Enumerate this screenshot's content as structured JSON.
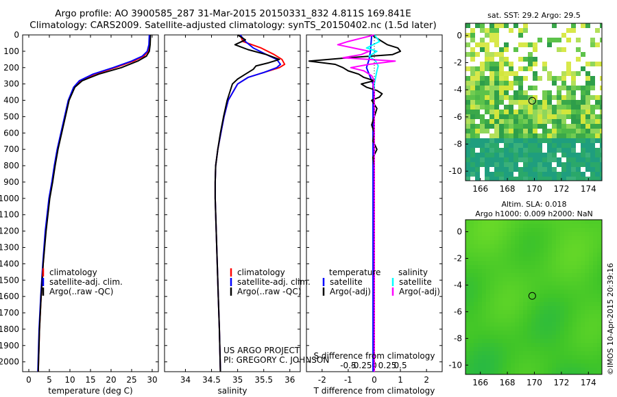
{
  "header": {
    "line1": "Argo profile: AO 3900585_287 31-Mar-2015 20150331_832 4.811S 169.841E",
    "line2": "Climatology: CARS2009. Satellite-adjusted climatology: synTS_20150402.nc (1.5d later)"
  },
  "colors": {
    "climatology": "#ff0000",
    "satellite": "#0000ff",
    "argo": "#000000",
    "satellite_salinity": "#00ffff",
    "argo_salinity": "#ff00ff"
  },
  "depth_axis": {
    "ticks": [
      0,
      100,
      200,
      300,
      400,
      500,
      600,
      700,
      800,
      900,
      1000,
      1100,
      1200,
      1300,
      1400,
      1500,
      1600,
      1700,
      1800,
      1900,
      2000
    ],
    "range": [
      0,
      2060
    ]
  },
  "panels": {
    "temperature": {
      "xlabel": "temperature (deg C)",
      "xrange": [
        -1.5,
        31.5
      ],
      "xticks": [
        0,
        5,
        10,
        15,
        20,
        25,
        30
      ],
      "xticklabels": [
        "0",
        "5",
        "10",
        "15",
        "20",
        "25",
        "30"
      ],
      "legend": [
        "climatology",
        "satellite-adj. clim.",
        "Argo(..raw -QC)"
      ]
    },
    "salinity": {
      "xlabel": "salinity",
      "xrange": [
        33.6,
        36.2
      ],
      "xticks": [
        34,
        34.5,
        35,
        35.5,
        36
      ],
      "xticklabels": [
        "34",
        "34.5",
        "35",
        "35.5",
        "36"
      ],
      "legend": [
        "climatology",
        "satellite-adj. clim.",
        "Argo(..raw -QC)"
      ],
      "credit1": "US ARGO PROJECT",
      "credit2": "PI: GREGORY C. JOHNSON"
    },
    "difference": {
      "xlabel_bottom": "T difference from climatology",
      "xlabel_top": "S difference from climatology",
      "xrange": [
        -2.6,
        2.6
      ],
      "t_ticks": [
        -2,
        -1,
        0,
        1,
        2
      ],
      "t_ticklabels": [
        "-2",
        "-1",
        "0",
        "1",
        "2"
      ],
      "s_ticks": [
        -1.0,
        -0.5,
        0,
        0.5,
        1.0
      ],
      "s_ticklabels": [
        "-0.5",
        "-0.25",
        "0",
        "0.25",
        "0.5"
      ],
      "legend_temperature_title": "temperature",
      "legend_salinity_title": "salinity",
      "legend_temperature": [
        "satellite",
        "Argo(-adj)"
      ],
      "legend_salinity": [
        "satellite",
        "Argo(-adj)"
      ]
    }
  },
  "maps": {
    "sst": {
      "title": "sat. SST: 29.2 Argo: 29.5"
    },
    "sla": {
      "title1": "Altim. SLA: 0.018",
      "title2": "Argo h1000: 0.009 h2000: NaN"
    },
    "xticks": [
      166,
      168,
      170,
      172,
      174
    ],
    "xrange": [
      164.9,
      175
    ],
    "yticks": [
      0,
      -2,
      -4,
      -6,
      -8,
      -10
    ],
    "yrange": [
      -10.7,
      0.9
    ],
    "argo_position": {
      "lon": 169.841,
      "lat": -4.811
    }
  },
  "timestamp": "©IMOS 10-Apr-2015 20:39:16",
  "chart_data": [
    {
      "type": "line",
      "title": "",
      "xlabel": "temperature (deg C)",
      "ylabel": "",
      "xlim": [
        -1.5,
        31.5
      ],
      "ylim": [
        2060,
        0
      ],
      "series": [
        {
          "name": "climatology",
          "depth": [
            0,
            60,
            100,
            130,
            160,
            200,
            240,
            280,
            320,
            400,
            500,
            600,
            700,
            800,
            900,
            1000,
            1200,
            1400,
            1600,
            1800,
            2060
          ],
          "values": [
            29.5,
            29.4,
            29.0,
            28.0,
            25.5,
            21.0,
            16.0,
            12.5,
            11.0,
            9.7,
            8.8,
            7.9,
            7.0,
            6.3,
            5.7,
            5.0,
            4.1,
            3.5,
            3.0,
            2.6,
            2.3
          ]
        },
        {
          "name": "satellite-adj. clim.",
          "depth": [
            0,
            60,
            100,
            130,
            160,
            200,
            240,
            280,
            320,
            400,
            500,
            600,
            700,
            800,
            900,
            1000,
            1200,
            1400,
            1600,
            1800,
            2060
          ],
          "values": [
            29.3,
            29.2,
            28.8,
            27.6,
            25.0,
            20.5,
            15.6,
            12.3,
            10.9,
            9.6,
            8.7,
            7.8,
            6.9,
            6.2,
            5.6,
            4.9,
            4.0,
            3.4,
            2.9,
            2.5,
            2.2
          ]
        },
        {
          "name": "Argo(..raw -QC)",
          "depth": [
            0,
            60,
            100,
            130,
            160,
            200,
            240,
            280,
            320,
            400,
            500,
            600,
            700,
            800,
            900,
            1000,
            1200,
            1400,
            1600,
            1800,
            2060
          ],
          "values": [
            29.6,
            29.5,
            29.3,
            28.6,
            26.5,
            22.5,
            17.0,
            13.0,
            11.2,
            9.8,
            8.9,
            8.0,
            7.1,
            6.4,
            5.8,
            5.1,
            4.2,
            3.5,
            3.0,
            2.6,
            2.3
          ]
        }
      ]
    },
    {
      "type": "line",
      "title": "",
      "xlabel": "salinity",
      "ylabel": "",
      "xlim": [
        33.6,
        36.2
      ],
      "ylim": [
        2060,
        0
      ],
      "series": [
        {
          "name": "climatology",
          "depth": [
            0,
            40,
            80,
            120,
            150,
            180,
            200,
            230,
            260,
            300,
            400,
            500,
            600,
            700,
            800,
            900,
            1000,
            1200,
            1400,
            1600,
            1800,
            2060
          ],
          "values": [
            35.05,
            35.1,
            35.45,
            35.7,
            35.85,
            35.9,
            35.8,
            35.5,
            35.2,
            35.0,
            34.82,
            34.74,
            34.68,
            34.62,
            34.58,
            34.57,
            34.57,
            34.59,
            34.61,
            34.63,
            34.65,
            34.67
          ]
        },
        {
          "name": "satellite-adj. clim.",
          "depth": [
            0,
            40,
            80,
            120,
            150,
            180,
            200,
            230,
            260,
            300,
            400,
            500,
            600,
            700,
            800,
            900,
            1000,
            1200,
            1400,
            1600,
            1800,
            2060
          ],
          "values": [
            35.05,
            35.15,
            35.3,
            35.55,
            35.75,
            35.82,
            35.75,
            35.5,
            35.2,
            35.0,
            34.82,
            34.74,
            34.68,
            34.62,
            34.58,
            34.57,
            34.57,
            34.59,
            34.61,
            34.63,
            34.65,
            34.67
          ]
        },
        {
          "name": "Argo(..raw -QC)",
          "depth": [
            0,
            30,
            60,
            90,
            120,
            150,
            170,
            190,
            210,
            240,
            270,
            300,
            400,
            500,
            600,
            700,
            800,
            900,
            1000,
            1200,
            1400,
            1600,
            1800,
            2060
          ],
          "values": [
            35.0,
            35.15,
            34.95,
            35.2,
            35.55,
            35.8,
            35.6,
            35.35,
            35.3,
            35.15,
            35.0,
            34.9,
            34.8,
            34.73,
            34.67,
            34.62,
            34.58,
            34.57,
            34.57,
            34.59,
            34.61,
            34.63,
            34.65,
            34.67
          ]
        }
      ]
    },
    {
      "type": "line",
      "title": "",
      "xlabel": "T difference from climatology",
      "ylabel": "",
      "xlim": [
        -2.6,
        2.6
      ],
      "ylim": [
        2060,
        0
      ],
      "series": [
        {
          "name": "temperature satellite",
          "depth": [
            0,
            100,
            150,
            200,
            260,
            300,
            400,
            600,
            800,
            1000,
            1200,
            1400,
            1600,
            1800,
            2060
          ],
          "values": [
            -0.1,
            -0.15,
            -0.2,
            -0.3,
            -0.15,
            -0.05,
            -0.05,
            -0.05,
            -0.05,
            -0.05,
            -0.05,
            -0.05,
            -0.05,
            -0.05,
            -0.05
          ]
        },
        {
          "name": "temperature Argo(-adj)",
          "depth": [
            0,
            20,
            40,
            60,
            80,
            100,
            120,
            140,
            160,
            180,
            200,
            220,
            240,
            260,
            280,
            300,
            320,
            340,
            360,
            380,
            400,
            450,
            500,
            550,
            600,
            650,
            700,
            750,
            800,
            900,
            1000,
            1200,
            1400,
            1600,
            1800,
            2060
          ],
          "values": [
            -0.1,
            0.1,
            0.3,
            0.5,
            0.9,
            1.0,
            0.7,
            -1.0,
            -2.5,
            -1.5,
            -1.2,
            -1.0,
            -0.6,
            -0.4,
            0.0,
            -0.5,
            -0.3,
            0.1,
            0.3,
            0.2,
            -0.1,
            0.1,
            0.0,
            -0.1,
            0.0,
            -0.05,
            0.1,
            -0.05,
            0.0,
            0.0,
            0.0,
            0.0,
            0.0,
            0.0,
            0.0,
            0.0
          ]
        },
        {
          "name": "salinity satellite",
          "depth": [
            0,
            40,
            80,
            100,
            130,
            160,
            190,
            220,
            260,
            300,
            400,
            600,
            800,
            1000,
            1200,
            1400,
            1600,
            1800,
            2060
          ],
          "values": [
            0.0,
            0.2,
            -0.3,
            0.1,
            -0.2,
            0.05,
            0.15,
            0.1,
            0.05,
            0.0,
            0.0,
            0.0,
            0.0,
            0.0,
            0.0,
            0.0,
            0.0,
            0.0,
            0.0
          ]
        },
        {
          "name": "salinity Argo(-adj)",
          "depth": [
            0,
            20,
            40,
            60,
            80,
            100,
            120,
            140,
            160,
            180,
            200,
            220,
            250,
            280,
            300,
            350,
            400,
            500,
            600,
            700,
            800,
            900,
            1000,
            1200,
            1400,
            1600,
            1800,
            2060
          ],
          "values": [
            0.0,
            -0.5,
            -1.0,
            -1.4,
            -0.8,
            -0.2,
            -0.5,
            -1.2,
            0.8,
            -0.2,
            -0.9,
            -0.4,
            -0.1,
            0.0,
            -0.05,
            0.0,
            0.0,
            0.0,
            0.0,
            0.0,
            0.0,
            0.0,
            0.0,
            0.0,
            0.0,
            0.0,
            0.0,
            0.0
          ]
        }
      ]
    }
  ]
}
